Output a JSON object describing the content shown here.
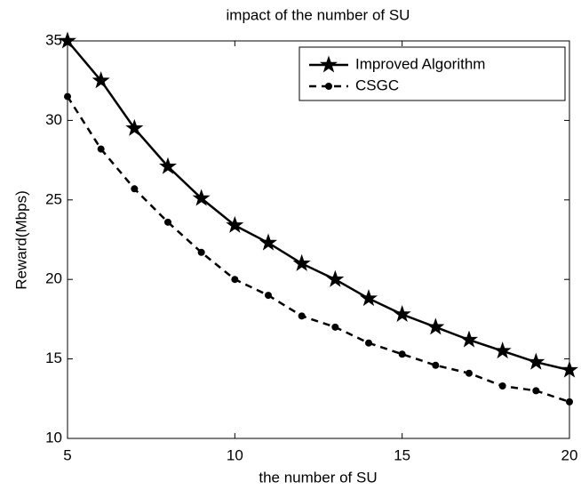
{
  "chart_data": {
    "type": "line",
    "title": "impact of the number of SU",
    "x_label": "the number of SU",
    "y_label": "Reward(Mbps)",
    "x": [
      5,
      6,
      7,
      8,
      9,
      10,
      11,
      12,
      13,
      14,
      15,
      16,
      17,
      18,
      19,
      20
    ],
    "series": [
      {
        "name": "Improved Algorithm",
        "color": "#000000",
        "linestyle": "solid",
        "marker": "star",
        "values": [
          35,
          32.5,
          29.5,
          27.1,
          25.1,
          23.4,
          22.3,
          21.0,
          20.0,
          18.8,
          17.8,
          17.0,
          16.2,
          15.5,
          14.8,
          14.3
        ]
      },
      {
        "name": "CSGC",
        "color": "#000000",
        "linestyle": "dashed",
        "marker": "dot",
        "values": [
          31.5,
          28.2,
          25.7,
          23.6,
          21.7,
          20.0,
          19.0,
          17.7,
          17.0,
          16.0,
          15.3,
          14.6,
          14.1,
          13.3,
          13.0,
          12.3
        ]
      }
    ],
    "xlim": [
      5,
      20
    ],
    "xticks": [
      5,
      10,
      15,
      20
    ],
    "ylim": [
      10,
      35
    ],
    "yticks": [
      10,
      15,
      20,
      25,
      30,
      35
    ],
    "grid": false,
    "legend": "northeast"
  }
}
